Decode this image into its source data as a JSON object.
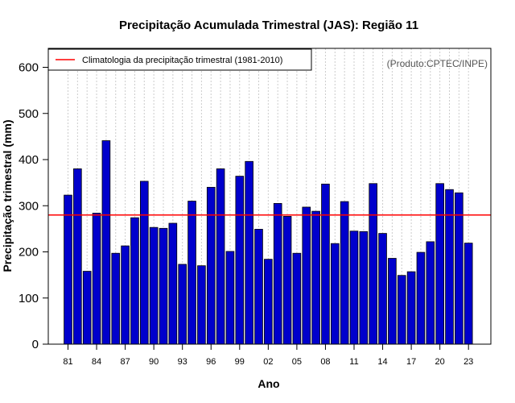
{
  "chart_data": {
    "type": "bar",
    "title": "Precipitação Acumulada Trimestral (JAS): Região 11",
    "xlabel": "Ano",
    "ylabel": "Precipitação trimestral (mm)",
    "source_note": "(Produto:CPTEC/INPE)",
    "ylim": [
      0,
      650
    ],
    "yticks": [
      0,
      100,
      200,
      300,
      400,
      500,
      600
    ],
    "xtick_labels": [
      "81",
      "84",
      "87",
      "90",
      "93",
      "96",
      "99",
      "02",
      "05",
      "08",
      "11",
      "14",
      "17",
      "20",
      "23"
    ],
    "xtick_years": [
      1981,
      1984,
      1987,
      1990,
      1993,
      1996,
      1999,
      2002,
      2005,
      2008,
      2011,
      2014,
      2017,
      2020,
      2023
    ],
    "grid": "vertical dotted",
    "bar_color": "#0000cc",
    "climatology": {
      "label": "Climatologia da precipitação trimestral (1981-2010)",
      "value": 280,
      "color": "#ff0000"
    },
    "legend_position": "top-left",
    "years": [
      1981,
      1982,
      1983,
      1984,
      1985,
      1986,
      1987,
      1988,
      1989,
      1990,
      1991,
      1992,
      1993,
      1994,
      1995,
      1996,
      1997,
      1998,
      1999,
      2000,
      2001,
      2002,
      2003,
      2004,
      2005,
      2006,
      2007,
      2008,
      2009,
      2010,
      2011,
      2012,
      2013,
      2014,
      2015,
      2016,
      2017,
      2018,
      2019,
      2020,
      2021,
      2022,
      2023
    ],
    "values": [
      323,
      380,
      158,
      284,
      441,
      197,
      213,
      274,
      353,
      253,
      251,
      262,
      173,
      310,
      170,
      340,
      380,
      201,
      364,
      396,
      249,
      184,
      305,
      277,
      197,
      297,
      288,
      347,
      218,
      309,
      245,
      244,
      348,
      240,
      186,
      149,
      157,
      199,
      222,
      348,
      335,
      328,
      219
    ]
  }
}
